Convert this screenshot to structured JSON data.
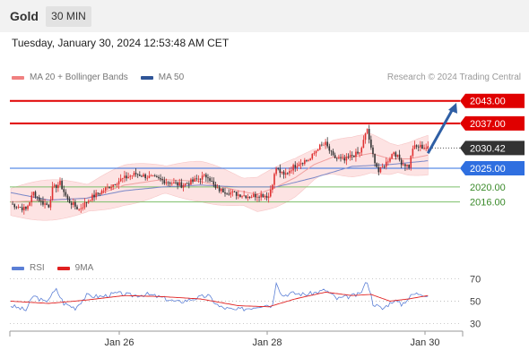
{
  "header": {
    "symbol": "Gold",
    "timeframe": "30 MIN",
    "datetime": "Tuesday, January 30, 2024 12:53:48 AM CET"
  },
  "legend": {
    "main": [
      {
        "label": "MA 20 + Bollinger Bands",
        "color": "#f08080"
      },
      {
        "label": "MA 50",
        "color": "#2f5597"
      }
    ],
    "rsi": [
      {
        "label": "RSI",
        "color": "#5b7fd6"
      },
      {
        "label": "9MA",
        "color": "#e02020"
      }
    ],
    "credit": "Research © 2024 Trading Central"
  },
  "colors": {
    "up": "#e03030",
    "down": "#333333",
    "resistance": "#e00000",
    "pivot": "#2f6fe0",
    "support": "#7cbf6a",
    "band_fill": "#fde3e3",
    "ma20": "#f0a0a0",
    "ma50": "#7a88c8",
    "arrow": "#2f5fa5"
  },
  "chart_data": {
    "type": "candlestick",
    "title": "Gold 30 MIN",
    "ylim": [
      2003,
      2047
    ],
    "x_ticks": [
      "Jan 26",
      "Jan 28",
      "Jan 30"
    ],
    "levels": [
      {
        "label": "2043.00",
        "value": 2043.0,
        "kind": "resistance"
      },
      {
        "label": "2037.00",
        "value": 2037.0,
        "kind": "resistance"
      },
      {
        "label": "2030.42",
        "value": 2030.42,
        "kind": "last"
      },
      {
        "label": "2025.00",
        "value": 2025.0,
        "kind": "pivot"
      },
      {
        "label": "2020.00",
        "value": 2020.0,
        "kind": "support"
      },
      {
        "label": "2016.00",
        "value": 2016.0,
        "kind": "support"
      }
    ],
    "anchors": [
      [
        0,
        2015.5
      ],
      [
        8,
        2014.0
      ],
      [
        12,
        2018.5
      ],
      [
        16,
        2016.0
      ],
      [
        20,
        2015.0
      ],
      [
        22,
        2019.5
      ],
      [
        26,
        2021.0
      ],
      [
        30,
        2016.5
      ],
      [
        36,
        2014.0
      ],
      [
        42,
        2017.0
      ],
      [
        50,
        2019.5
      ],
      [
        58,
        2022.0
      ],
      [
        66,
        2023.5
      ],
      [
        74,
        2022.5
      ],
      [
        82,
        2021.5
      ],
      [
        90,
        2020.5
      ],
      [
        96,
        2021.5
      ],
      [
        100,
        2022.5
      ],
      [
        104,
        2023.0
      ],
      [
        108,
        2019.5
      ],
      [
        112,
        2019.0
      ],
      [
        120,
        2018.0
      ],
      [
        126,
        2017.5
      ],
      [
        132,
        2018.0
      ],
      [
        136,
        2017.5
      ],
      [
        140,
        2025.0
      ],
      [
        144,
        2023.0
      ],
      [
        148,
        2025.0
      ],
      [
        152,
        2026.5
      ],
      [
        158,
        2027.5
      ],
      [
        162,
        2030.5
      ],
      [
        166,
        2031.5
      ],
      [
        170,
        2028.0
      ],
      [
        176,
        2027.0
      ],
      [
        180,
        2028.5
      ],
      [
        184,
        2029.0
      ],
      [
        188,
        2035.5
      ],
      [
        190,
        2030.0
      ],
      [
        194,
        2024.0
      ],
      [
        198,
        2026.5
      ],
      [
        202,
        2029.5
      ],
      [
        206,
        2026.5
      ],
      [
        210,
        2025.5
      ],
      [
        212,
        2030.5
      ],
      [
        216,
        2030.8
      ],
      [
        220,
        2030.4
      ]
    ],
    "candle_count": 221,
    "ma20_anchors": [
      [
        0,
        2016.0
      ],
      [
        20,
        2016.5
      ],
      [
        40,
        2017.0
      ],
      [
        60,
        2020.5
      ],
      [
        80,
        2022.0
      ],
      [
        100,
        2021.5
      ],
      [
        120,
        2019.0
      ],
      [
        130,
        2018.0
      ],
      [
        140,
        2020.0
      ],
      [
        150,
        2022.5
      ],
      [
        160,
        2026.0
      ],
      [
        170,
        2028.0
      ],
      [
        180,
        2028.0
      ],
      [
        190,
        2029.0
      ],
      [
        200,
        2027.5
      ],
      [
        210,
        2027.5
      ],
      [
        220,
        2028.5
      ]
    ],
    "ma50_anchors": [
      [
        0,
        2018.5
      ],
      [
        20,
        2016.5
      ],
      [
        40,
        2017.0
      ],
      [
        60,
        2019.0
      ],
      [
        80,
        2020.0
      ],
      [
        100,
        2020.5
      ],
      [
        120,
        2020.0
      ],
      [
        140,
        2020.0
      ],
      [
        160,
        2022.5
      ],
      [
        180,
        2025.5
      ],
      [
        200,
        2026.0
      ],
      [
        220,
        2027.0
      ]
    ],
    "band_width": 4.5,
    "forecast_arrow": {
      "from": [
        220,
        2029.0
      ],
      "to": [
        235,
        2042.5
      ]
    },
    "rsi": {
      "ylim": [
        25,
        75
      ],
      "levels": [
        70,
        50,
        30
      ],
      "rsi_anchors": [
        [
          0,
          46
        ],
        [
          8,
          42
        ],
        [
          12,
          55
        ],
        [
          18,
          49
        ],
        [
          24,
          60
        ],
        [
          28,
          48
        ],
        [
          34,
          44
        ],
        [
          40,
          55
        ],
        [
          48,
          54
        ],
        [
          56,
          57
        ],
        [
          64,
          55
        ],
        [
          72,
          56
        ],
        [
          80,
          53
        ],
        [
          88,
          49
        ],
        [
          96,
          52
        ],
        [
          104,
          55
        ],
        [
          110,
          45
        ],
        [
          118,
          42
        ],
        [
          126,
          44
        ],
        [
          134,
          47
        ],
        [
          138,
          46
        ],
        [
          140,
          68
        ],
        [
          143,
          55
        ],
        [
          148,
          57
        ],
        [
          156,
          56
        ],
        [
          162,
          58
        ],
        [
          166,
          60
        ],
        [
          172,
          52
        ],
        [
          178,
          54
        ],
        [
          184,
          56
        ],
        [
          188,
          68
        ],
        [
          191,
          48
        ],
        [
          196,
          43
        ],
        [
          202,
          51
        ],
        [
          206,
          47
        ],
        [
          212,
          56
        ],
        [
          216,
          57
        ],
        [
          220,
          55
        ]
      ],
      "ma9_anchors": [
        [
          0,
          50
        ],
        [
          20,
          48
        ],
        [
          40,
          51
        ],
        [
          60,
          55
        ],
        [
          80,
          54
        ],
        [
          100,
          52
        ],
        [
          120,
          46
        ],
        [
          136,
          45
        ],
        [
          150,
          52
        ],
        [
          166,
          58
        ],
        [
          180,
          55
        ],
        [
          190,
          56
        ],
        [
          200,
          50
        ],
        [
          210,
          52
        ],
        [
          220,
          55
        ]
      ]
    }
  }
}
